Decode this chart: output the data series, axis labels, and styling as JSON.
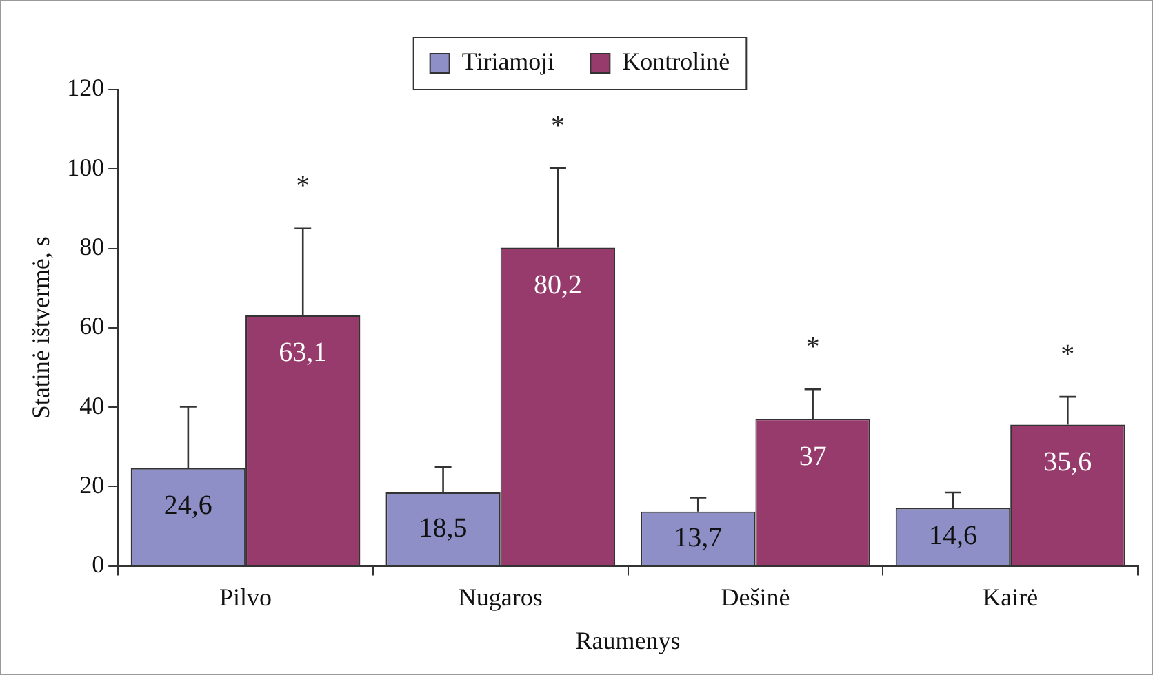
{
  "chart_data": {
    "type": "bar",
    "xlabel": "Raumenys",
    "ylabel": "Statinė ištvermė, s",
    "categories": [
      "Pilvo",
      "Nugaros",
      "Dešinė",
      "Kairė"
    ],
    "series": [
      {
        "name": "Tiriamoji",
        "color": "#8d8fc6",
        "values": [
          24.6,
          18.5,
          13.7,
          14.6
        ],
        "value_labels": [
          "24,6",
          "18,5",
          "13,7",
          "14,6"
        ],
        "errors": [
          [
            24.6,
            40.1
          ],
          [
            18.5,
            24.9
          ],
          [
            13.7,
            17.2
          ],
          [
            14.6,
            18.5
          ]
        ]
      },
      {
        "name": "Kontrolinė",
        "color": "#973a6c",
        "values": [
          63.1,
          80.2,
          37,
          35.6
        ],
        "value_labels": [
          "63,1",
          "80,2",
          "37",
          "35,6"
        ],
        "errors": [
          [
            63.1,
            85
          ],
          [
            80.2,
            100.2
          ],
          [
            37,
            44.5
          ],
          [
            35.6,
            42.6
          ]
        ]
      }
    ],
    "annotations": [
      "*",
      "*",
      "*",
      "*"
    ],
    "ylim": [
      0,
      120
    ],
    "yticks": [
      0,
      20,
      40,
      60,
      80,
      100,
      120
    ],
    "grid": false,
    "legend": "top"
  }
}
